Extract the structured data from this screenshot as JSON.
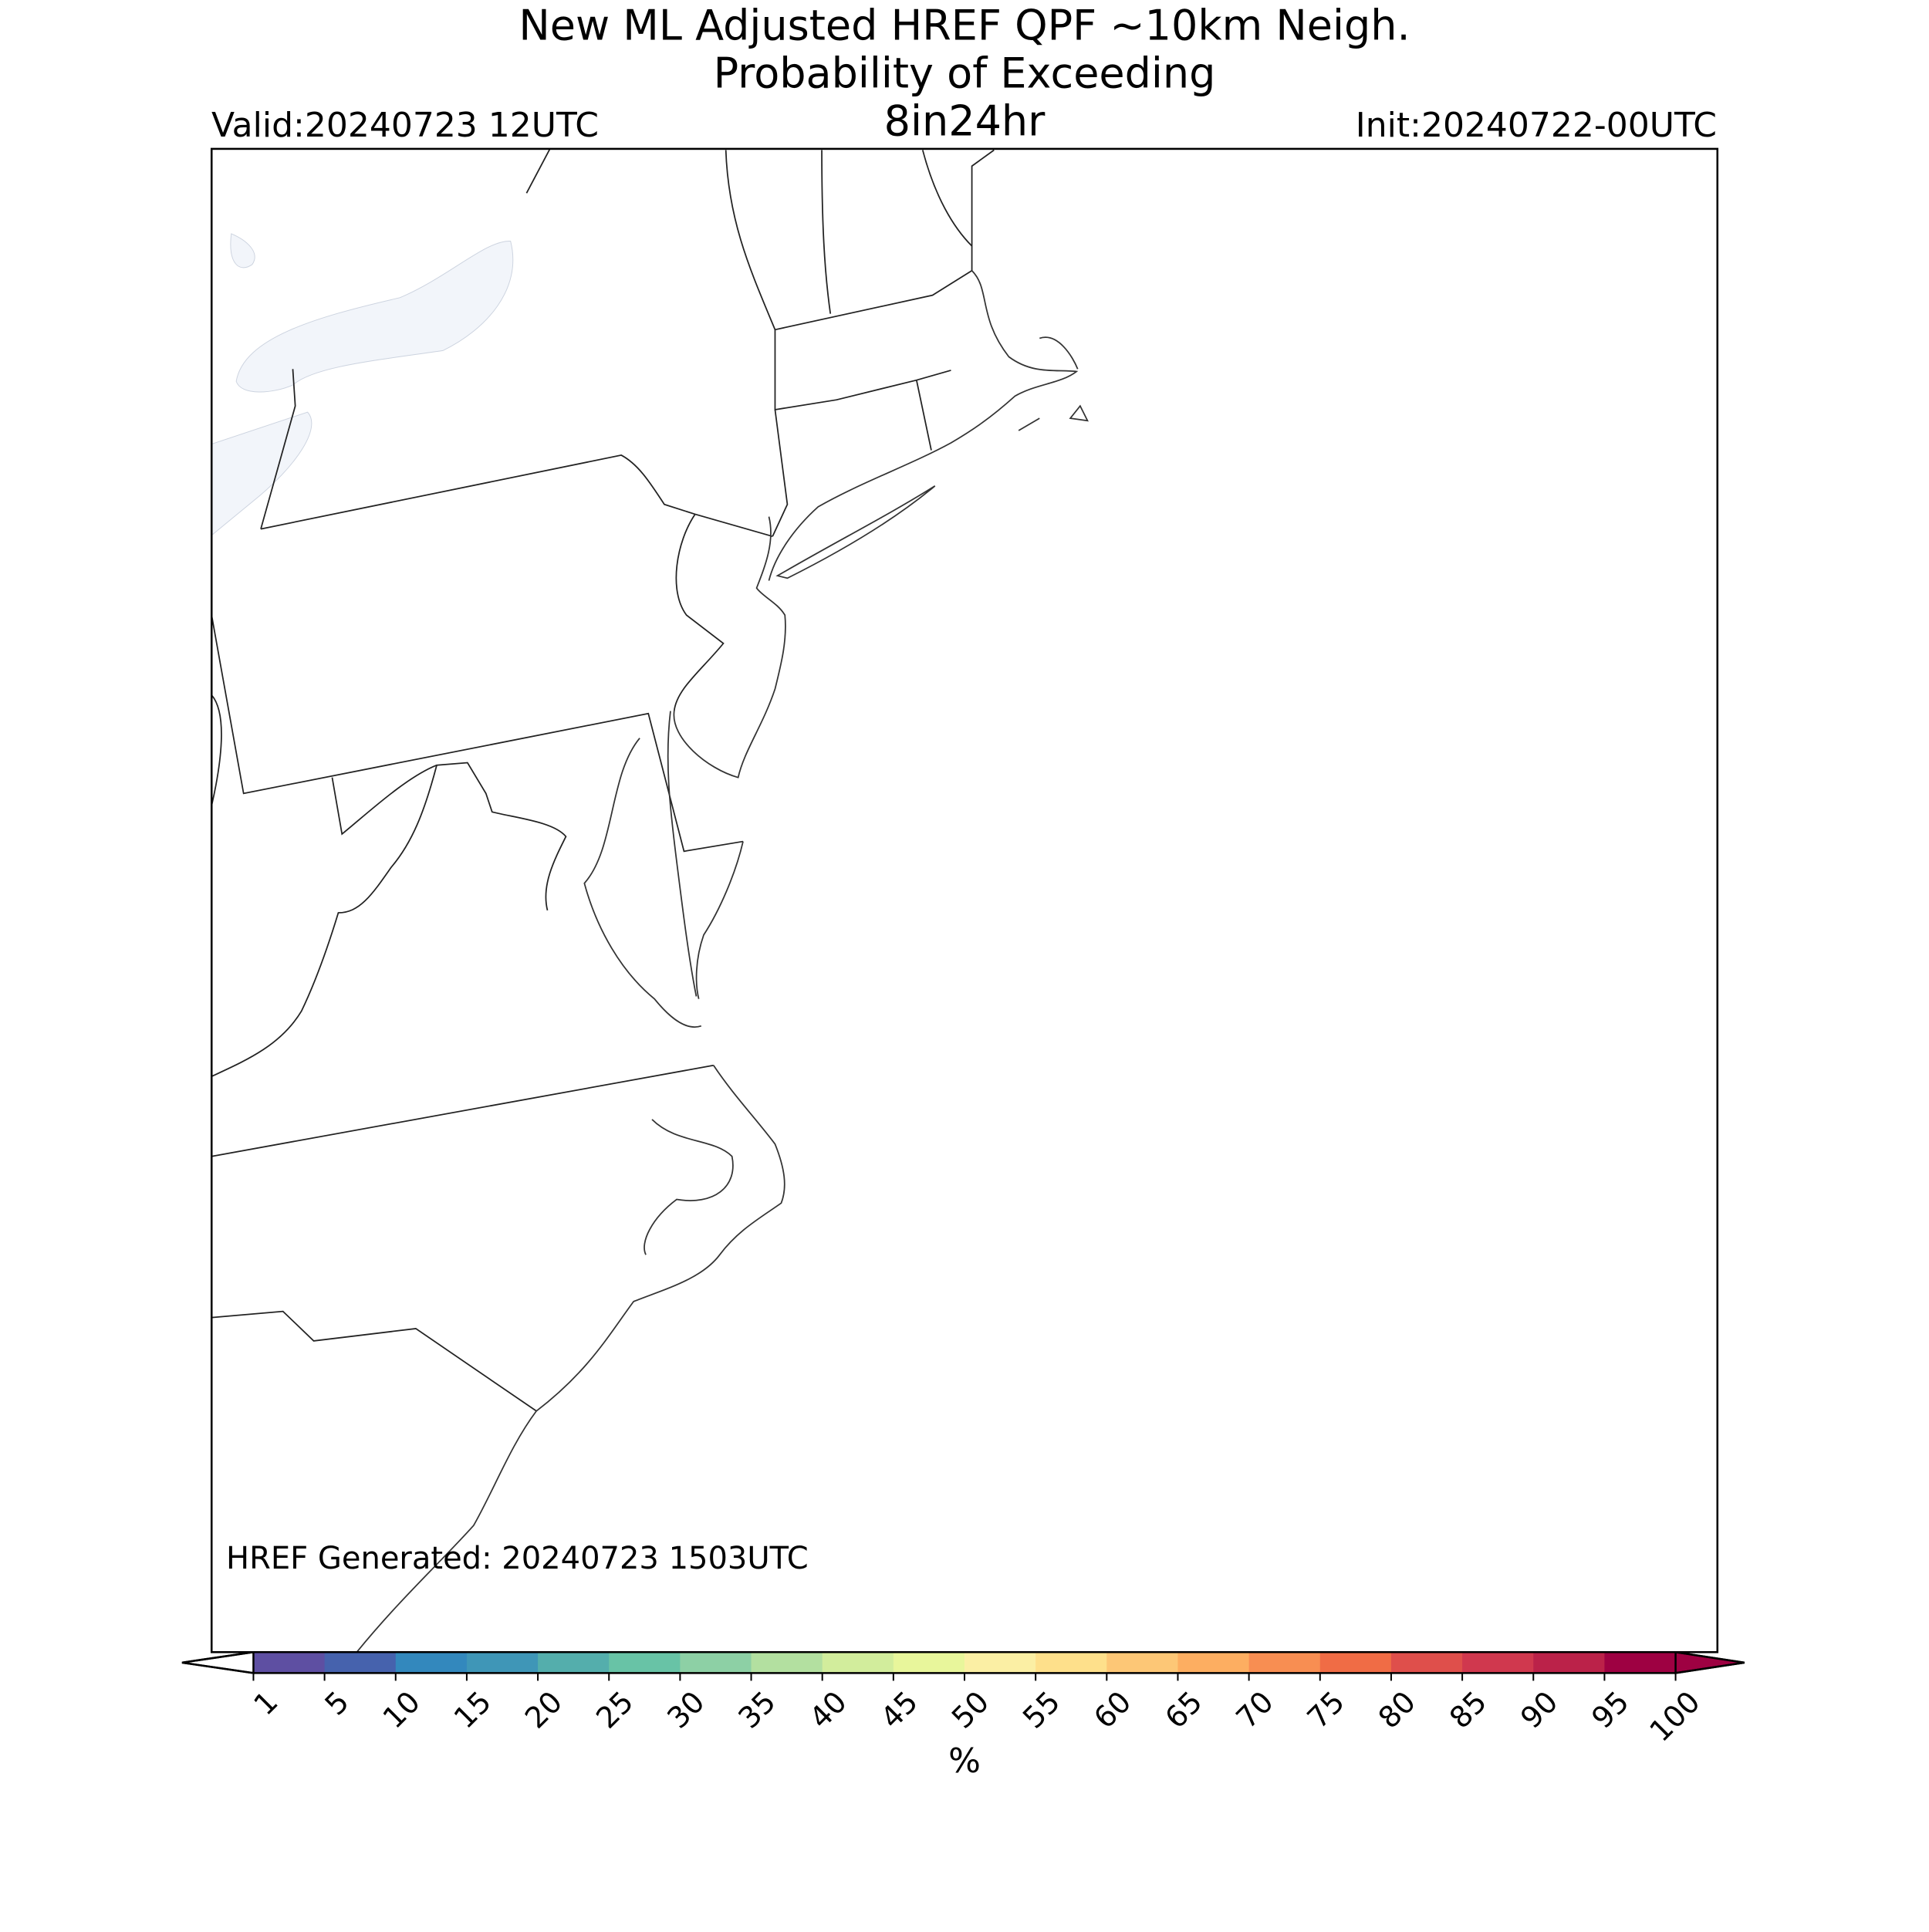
{
  "title_lines": [
    "New ML Adjusted HREF QPF ~10km Neigh.",
    "Probability of Exceeding",
    "8in24hr"
  ],
  "valid": "Valid:20240723 12UTC",
  "init": "Init:20240722-00UTC",
  "generated": "HREF Generated: 20240723 1503UTC",
  "colorbar": {
    "label": "%",
    "ticks": [
      1,
      5,
      10,
      15,
      20,
      25,
      30,
      35,
      40,
      45,
      50,
      55,
      60,
      65,
      70,
      75,
      80,
      85,
      90,
      95,
      100
    ],
    "colors": [
      "#5e4fa2",
      "#4662ad",
      "#3388bd",
      "#3f96b7",
      "#54aeac",
      "#68c3a6",
      "#8dd0a5",
      "#b3e0a0",
      "#d2ed9c",
      "#e8f69b",
      "#fbefa4",
      "#fee08b",
      "#fdc776",
      "#fdae61",
      "#f88e52",
      "#f06c45",
      "#df4f4b",
      "#d0384e",
      "#bb2249",
      "#9e0142"
    ],
    "extend_low_color": "#ffffff",
    "extend_high_color": "#9e0142"
  }
}
